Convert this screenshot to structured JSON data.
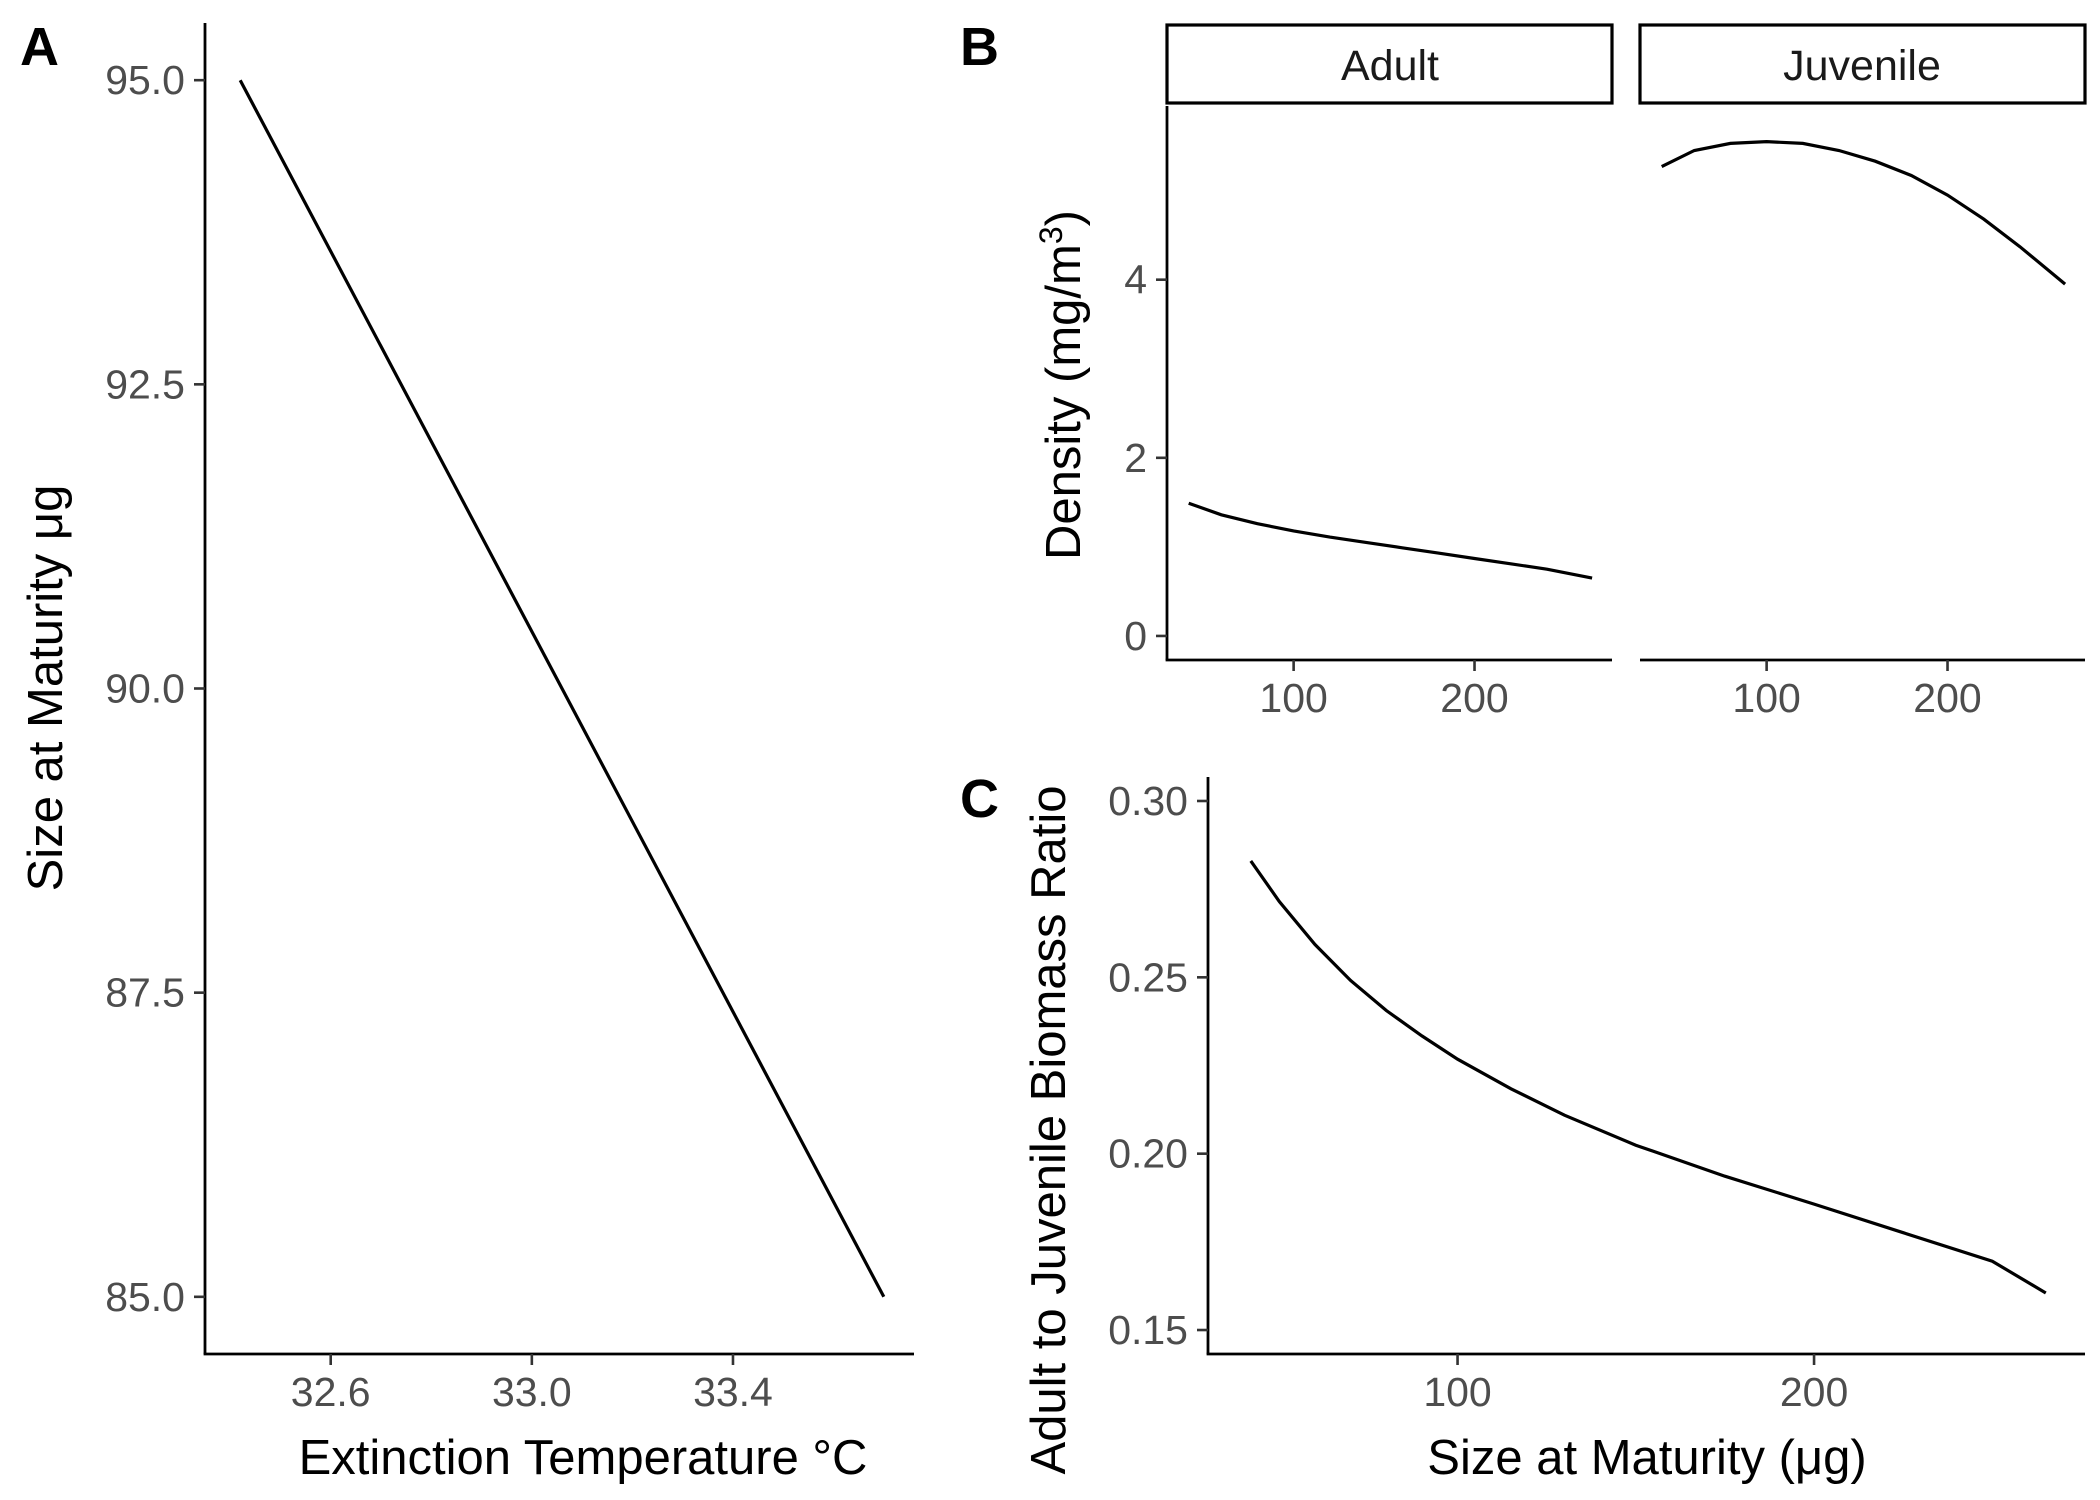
{
  "chart_data": [
    {
      "panel": "A",
      "type": "line",
      "xlabel": "Extinction Temperature °C",
      "ylabel": "Size at Maturity μg",
      "xlim": [
        32.35,
        33.76
      ],
      "ylim": [
        84.53,
        95.47
      ],
      "xticks": [
        32.6,
        33.0,
        33.4
      ],
      "xtick_labels": [
        "32.6",
        "33.0",
        "33.4"
      ],
      "yticks": [
        85.0,
        87.5,
        90.0,
        92.5,
        95.0
      ],
      "ytick_labels": [
        "85.0",
        "87.5",
        "90.0",
        "92.5",
        "95.0"
      ],
      "grid": false,
      "series": [
        {
          "x": [
            32.42,
            33.7
          ],
          "y": [
            95.0,
            85.0
          ]
        }
      ]
    },
    {
      "panel": "B",
      "type": "line",
      "ylabel": "Density (mg/m",
      "ylabel_sup": "3",
      "ylabel_close": ")",
      "facets": [
        "Adult",
        "Juvenile"
      ],
      "xlim": [
        30,
        276
      ],
      "ylim": [
        -0.27,
        5.95
      ],
      "xticks": [
        100,
        200
      ],
      "xtick_labels": [
        "100",
        "200"
      ],
      "yticks": [
        0,
        2,
        4
      ],
      "ytick_labels": [
        "0",
        "2",
        "4"
      ],
      "grid": false,
      "series": [
        {
          "facet": "Adult",
          "x": [
            42,
            60,
            80,
            100,
            120,
            140,
            160,
            180,
            200,
            220,
            240,
            265
          ],
          "y": [
            1.49,
            1.36,
            1.26,
            1.18,
            1.11,
            1.05,
            0.99,
            0.93,
            0.87,
            0.81,
            0.75,
            0.65
          ]
        },
        {
          "facet": "Juvenile",
          "x": [
            42,
            60,
            80,
            100,
            120,
            140,
            160,
            180,
            200,
            220,
            240,
            265
          ],
          "y": [
            5.27,
            5.45,
            5.53,
            5.55,
            5.53,
            5.45,
            5.33,
            5.17,
            4.95,
            4.68,
            4.37,
            3.95
          ]
        }
      ]
    },
    {
      "panel": "C",
      "type": "line",
      "xlabel": "Size at Maturity (μg)",
      "ylabel": "Adult to Juvenile Biomass Ratio",
      "xlim": [
        30,
        276
      ],
      "ylim": [
        0.1432,
        0.3068
      ],
      "xticks": [
        100,
        200
      ],
      "xtick_labels": [
        "100",
        "200"
      ],
      "yticks": [
        0.15,
        0.2,
        0.25,
        0.3
      ],
      "ytick_labels": [
        "0.15",
        "0.20",
        "0.25",
        "0.30"
      ],
      "grid": false,
      "series": [
        {
          "x": [
            42,
            50,
            60,
            70,
            80,
            90,
            100,
            115,
            130,
            150,
            175,
            200,
            225,
            250,
            265
          ],
          "y": [
            0.283,
            0.2715,
            0.2593,
            0.2491,
            0.2406,
            0.2334,
            0.2268,
            0.2184,
            0.2109,
            0.2024,
            0.1936,
            0.1857,
            0.1776,
            0.1695,
            0.1605
          ]
        }
      ]
    }
  ]
}
